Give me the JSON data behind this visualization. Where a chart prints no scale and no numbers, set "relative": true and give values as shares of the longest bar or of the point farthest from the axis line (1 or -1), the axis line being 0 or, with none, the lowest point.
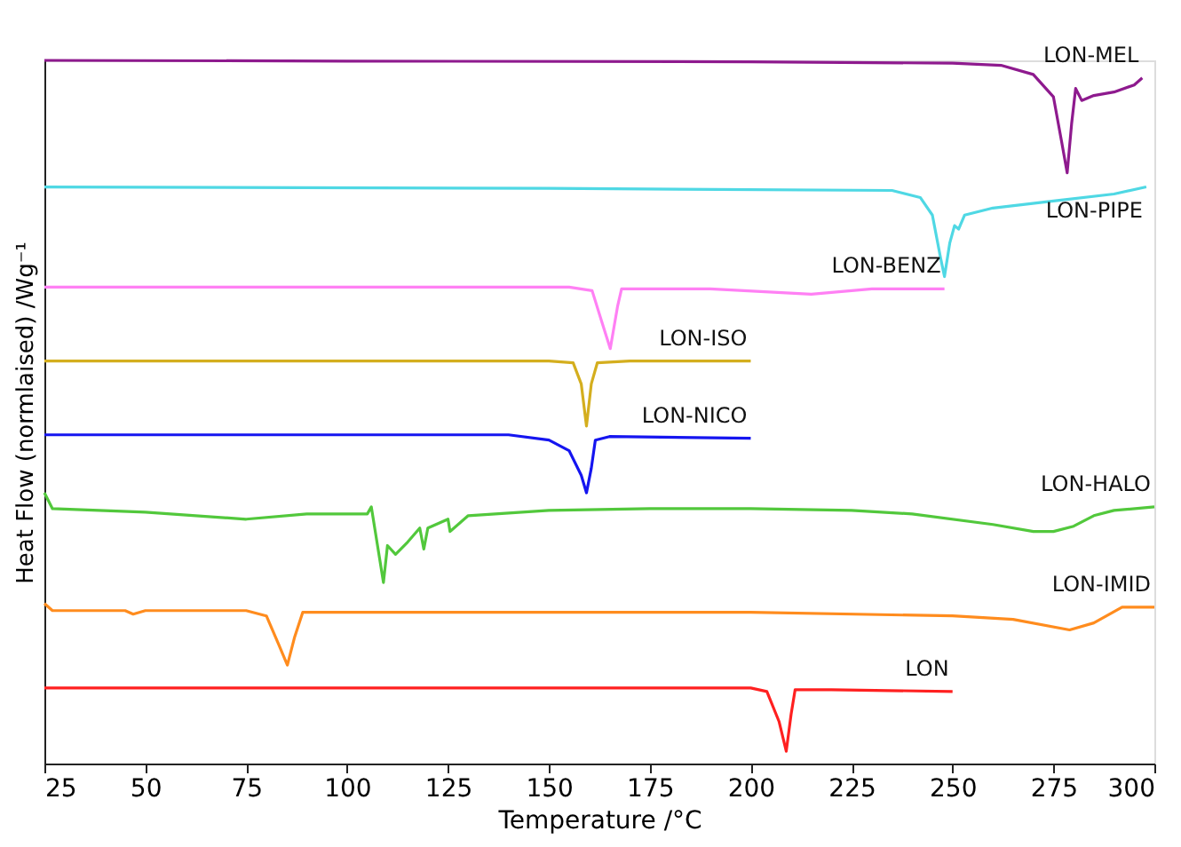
{
  "chart_data": {
    "type": "line",
    "relative": true,
    "xlabel": "Temperature /°C",
    "ylabel": "Heat Flow (normlaised) /Wg⁻¹",
    "xlim": [
      25,
      300
    ],
    "xticks": [
      25,
      50,
      75,
      100,
      125,
      150,
      175,
      200,
      225,
      250,
      275,
      300
    ],
    "grid": false,
    "legend": false,
    "tick_labels": "x",
    "line_style": "solid",
    "marker": "none",
    "series": [
      {
        "name": "LON-MEL",
        "color": "#8e1a8e",
        "x": [
          25,
          100,
          200,
          250,
          262,
          270,
          275,
          277,
          278.4,
          279.5,
          280.5,
          282,
          285,
          290,
          295,
          297
        ],
        "values": [
          1.0,
          0.999,
          0.998,
          0.996,
          0.993,
          0.98,
          0.948,
          0.885,
          0.84,
          0.91,
          0.96,
          0.943,
          0.95,
          0.955,
          0.965,
          0.975
        ]
      },
      {
        "name": "LON-PIPE",
        "color": "#4fd8e4",
        "x": [
          25,
          150,
          235,
          242,
          245,
          247,
          248,
          249.3,
          250.5,
          251.5,
          253,
          260,
          275,
          290,
          298
        ],
        "values": [
          0.82,
          0.818,
          0.815,
          0.805,
          0.78,
          0.72,
          0.6925,
          0.74,
          0.765,
          0.76,
          0.78,
          0.79,
          0.8,
          0.81,
          0.82
        ]
      },
      {
        "name": "LON-BENZ",
        "color": "#ff80f4",
        "x": [
          25,
          155,
          160.7,
          163,
          165.2,
          167,
          168,
          190,
          215,
          230,
          248
        ],
        "values": [
          0.6775,
          0.6775,
          0.6725,
          0.63,
          0.59,
          0.65,
          0.675,
          0.675,
          0.6675,
          0.675,
          0.675
        ]
      },
      {
        "name": "LON-ISO",
        "color": "#d4ae1e",
        "x": [
          25,
          150,
          156,
          158,
          159.3,
          160.5,
          162,
          170,
          200
        ],
        "values": [
          0.5725,
          0.5725,
          0.57,
          0.54,
          0.48,
          0.54,
          0.57,
          0.5725,
          0.5725
        ]
      },
      {
        "name": "LON-NICO",
        "color": "#1515f0",
        "x": [
          25,
          140,
          150,
          155,
          158,
          159.3,
          160.5,
          161.5,
          165,
          200
        ],
        "values": [
          0.4675,
          0.4675,
          0.46,
          0.445,
          0.41,
          0.385,
          0.42,
          0.46,
          0.465,
          0.4625
        ]
      },
      {
        "name": "LON-HALO",
        "color": "#52c83c",
        "x": [
          25,
          27,
          50,
          75,
          90,
          105,
          106,
          109,
          110,
          112,
          115,
          118,
          119,
          120,
          125,
          125.5,
          130,
          150,
          175,
          200,
          225,
          240,
          260,
          270,
          275,
          280,
          285,
          290,
          300
        ],
        "values": [
          0.385,
          0.3625,
          0.3575,
          0.3475,
          0.355,
          0.355,
          0.365,
          0.2575,
          0.31,
          0.2975,
          0.315,
          0.335,
          0.305,
          0.335,
          0.3475,
          0.33,
          0.3525,
          0.36,
          0.3625,
          0.3625,
          0.36,
          0.355,
          0.34,
          0.33,
          0.33,
          0.3375,
          0.3525,
          0.36,
          0.365
        ]
      },
      {
        "name": "LON-IMID",
        "color": "#ff8c1e",
        "x": [
          25,
          27,
          45,
          47,
          50,
          75,
          80,
          83,
          85.2,
          87,
          89,
          150,
          200,
          250,
          265,
          279,
          285,
          292,
          300
        ],
        "values": [
          0.2275,
          0.2175,
          0.2175,
          0.2125,
          0.2175,
          0.2175,
          0.21,
          0.17,
          0.14,
          0.18,
          0.215,
          0.215,
          0.215,
          0.21,
          0.205,
          0.19,
          0.2,
          0.2225,
          0.2225
        ]
      },
      {
        "name": "LON",
        "color": "#ff2020",
        "x": [
          25,
          150,
          200,
          204,
          207,
          208.8,
          210,
          211,
          220,
          250
        ],
        "values": [
          0.1075,
          0.1075,
          0.1075,
          0.1025,
          0.06,
          0.0175,
          0.07,
          0.105,
          0.105,
          0.1025
        ]
      }
    ]
  }
}
